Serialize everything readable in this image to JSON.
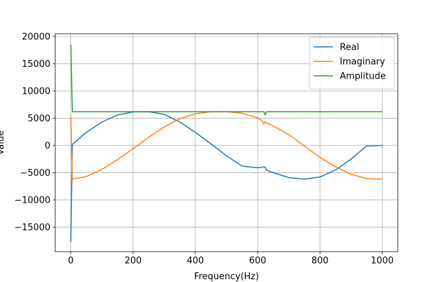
{
  "chart_data": {
    "type": "line",
    "title": "",
    "xlabel": "Frequency(Hz)",
    "ylabel": "Value",
    "xlim": [
      -50,
      1050
    ],
    "ylim": [
      -19500,
      20500
    ],
    "xticks": [
      0,
      200,
      400,
      600,
      800,
      1000
    ],
    "yticks": [
      -15000,
      -10000,
      -5000,
      0,
      5000,
      10000,
      15000,
      20000
    ],
    "xtick_labels": [
      "0",
      "200",
      "400",
      "600",
      "800",
      "1000"
    ],
    "ytick_labels": [
      "−15000",
      "−10000",
      "−5000",
      "0",
      "5000",
      "10000",
      "15000",
      "20000"
    ],
    "grid": true,
    "legend_position": "upper right",
    "series": [
      {
        "name": "Real",
        "color": "#1f77b4",
        "x": [
          0,
          5,
          50,
          100,
          150,
          200,
          250,
          300,
          350,
          400,
          450,
          500,
          550,
          600,
          615,
          620,
          624,
          628,
          640,
          700,
          750,
          800,
          850,
          900,
          950,
          1000
        ],
        "y": [
          -17700,
          200,
          2400,
          4300,
          5600,
          6150,
          6200,
          5700,
          4300,
          2400,
          300,
          -1900,
          -3800,
          -4100,
          -4000,
          -3900,
          -4000,
          -4500,
          -4800,
          -5900,
          -6200,
          -5800,
          -4500,
          -2500,
          -100,
          0
        ]
      },
      {
        "name": "Imaginary",
        "color": "#ff7f0e",
        "x": [
          0,
          5,
          50,
          100,
          150,
          200,
          250,
          300,
          350,
          400,
          450,
          500,
          550,
          600,
          615,
          620,
          624,
          628,
          640,
          700,
          750,
          800,
          850,
          900,
          950,
          1000
        ],
        "y": [
          5400,
          -6200,
          -5700,
          -4400,
          -2600,
          -600,
          1500,
          3400,
          4900,
          5800,
          6200,
          6200,
          5900,
          5100,
          4500,
          3900,
          4400,
          4100,
          3900,
          2000,
          -100,
          -2200,
          -3900,
          -5300,
          -6100,
          -6200
        ]
      },
      {
        "name": "Amplitude",
        "color": "#2ca02c",
        "x": [
          0,
          5,
          100,
          200,
          300,
          400,
          500,
          600,
          620,
          624,
          628,
          640,
          700,
          800,
          900,
          1000
        ],
        "y": [
          18500,
          6200,
          6200,
          6200,
          6200,
          6200,
          6200,
          6200,
          6200,
          5600,
          6200,
          6200,
          6200,
          6200,
          6200,
          6200
        ]
      }
    ]
  }
}
